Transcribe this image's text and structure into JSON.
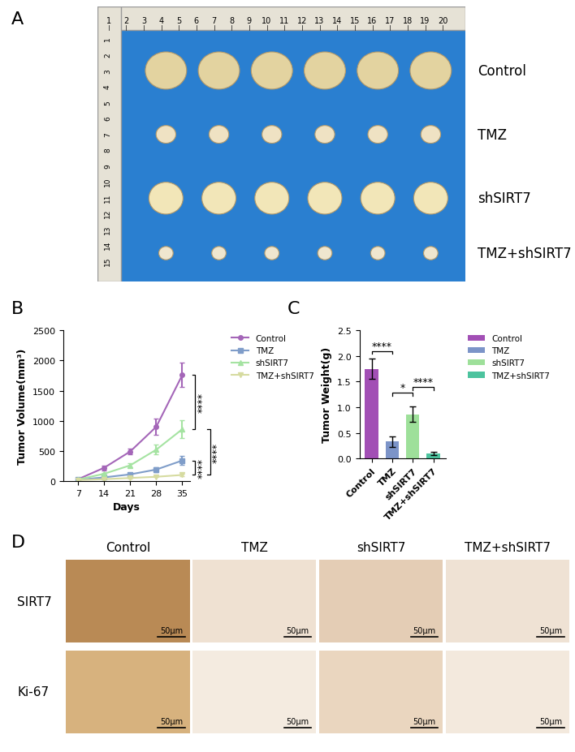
{
  "panel_labels": [
    "A",
    "B",
    "C",
    "D"
  ],
  "photo": {
    "ruler_top": [
      1,
      2,
      3,
      4,
      5,
      6,
      7,
      8,
      9,
      10,
      11,
      12,
      13,
      14,
      15,
      16,
      17,
      18,
      19,
      20
    ],
    "ruler_left": [
      1,
      2,
      3,
      4,
      5,
      6,
      7,
      8,
      9,
      10,
      11,
      12,
      13,
      14,
      15
    ],
    "rows": [
      "Control",
      "TMZ",
      "shSIRT7",
      "TMZ+shSIRT7"
    ]
  },
  "chart_data": [
    {
      "type": "line",
      "xlabel": "Days",
      "ylabel": "Tumor Volume(mm³)",
      "x": [
        7,
        14,
        21,
        28,
        35
      ],
      "xlim": [
        3,
        37
      ],
      "xticks": [
        7,
        14,
        21,
        28,
        35
      ],
      "ylim": [
        0,
        2500
      ],
      "yticks": [
        0,
        500,
        1000,
        1500,
        2000,
        2500
      ],
      "legend": "upper left",
      "series": [
        {
          "name": "Control",
          "color": "#a466b8",
          "marker": "o",
          "values": [
            30,
            220,
            490,
            900,
            1760
          ],
          "errors": [
            10,
            40,
            50,
            130,
            200
          ]
        },
        {
          "name": "TMZ",
          "color": "#7f9dc9",
          "marker": "s",
          "values": [
            20,
            60,
            110,
            190,
            340
          ],
          "errors": [
            5,
            15,
            20,
            40,
            70
          ]
        },
        {
          "name": "shSIRT7",
          "color": "#a5e3a2",
          "marker": "^",
          "values": [
            25,
            120,
            260,
            520,
            860
          ],
          "errors": [
            5,
            20,
            30,
            80,
            150
          ]
        },
        {
          "name": "TMZ+shSIRT7",
          "color": "#d6dba0",
          "marker": "v",
          "values": [
            15,
            30,
            50,
            70,
            100
          ],
          "errors": [
            3,
            5,
            8,
            10,
            15
          ]
        }
      ],
      "comparisons": [
        {
          "series": [
            "Control",
            "shSIRT7"
          ],
          "label": "****"
        },
        {
          "series": [
            "shSIRT7",
            "TMZ+shSIRT7"
          ],
          "label": "****"
        },
        {
          "series": [
            "TMZ",
            "TMZ+shSIRT7"
          ],
          "label": "****"
        }
      ]
    },
    {
      "type": "bar",
      "ylabel": "Tumor Weight(g)",
      "categories": [
        "Control",
        "TMZ",
        "shSIRT7",
        "TMZ+shSIRT7"
      ],
      "values": [
        1.75,
        0.33,
        0.86,
        0.1
      ],
      "errors": [
        0.2,
        0.1,
        0.15,
        0.03
      ],
      "colors": [
        "#a24fb5",
        "#7c94c8",
        "#9ee09a",
        "#4cc39e"
      ],
      "ylim": [
        0,
        2.5
      ],
      "yticks": [
        {
          "value": 0,
          "label": "0.0"
        },
        0.5,
        {
          "value": 1,
          "label": "1.0"
        },
        1.5,
        {
          "value": 2,
          "label": "2.0"
        },
        2.5
      ],
      "legend": "upper left",
      "comparisons": [
        {
          "categories": [
            "Control",
            "TMZ"
          ],
          "label": "****"
        },
        {
          "categories": [
            "TMZ",
            "shSIRT7"
          ],
          "label": "*"
        },
        {
          "categories": [
            "shSIRT7",
            "TMZ+shSIRT7"
          ],
          "label": "****"
        }
      ]
    }
  ],
  "ihc": {
    "columns": [
      "Control",
      "TMZ",
      "shSIRT7",
      "TMZ+shSIRT7"
    ],
    "rows": [
      "SIRT7",
      "Ki-67"
    ],
    "scale_bar": "50μm"
  }
}
